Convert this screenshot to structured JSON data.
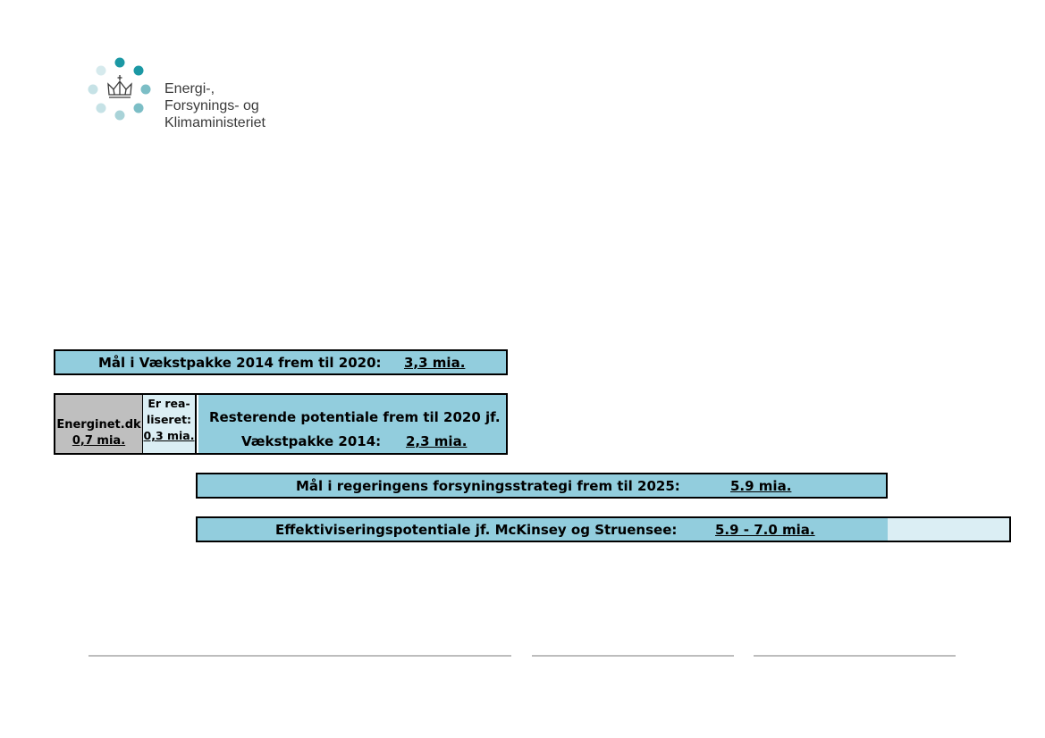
{
  "logo": {
    "name": "crown-dots-logo",
    "lines": [
      "Energi-,",
      "Forsynings- og",
      "Klimaministeriet"
    ],
    "colors": {
      "dark": "#1b98a4",
      "mid": "#7cbec6",
      "light": "#c6e2e6",
      "crown": "#3a3a3a"
    }
  },
  "box1": {
    "label": "Mål i Vækstpakke 2014 frem til 2020:",
    "value": "3,3 mia."
  },
  "box2": {
    "energinet": {
      "name": "Energinet.dk",
      "value": "0,7 mia."
    },
    "realiseret": {
      "line1": "Er rea-",
      "line2": "liseret:",
      "value": "0,3 mia."
    },
    "rest": {
      "line1": "Resterende potentiale frem til 2020 jf.",
      "line2": "Vækstpakke 2014:",
      "value": "2,3 mia."
    }
  },
  "box3": {
    "label": "Mål i regeringens forsyningsstrategi frem til 2025:",
    "value": "5.9 mia."
  },
  "box4": {
    "label": "Effektiviseringspotentiale jf. McKinsey og Struensee:",
    "value": "5.9 - 7.0 mia."
  },
  "colors": {
    "box_blue": "#92cddd",
    "box_light": "#dbeef4",
    "box_grey": "#bfbfbf",
    "footer_line": "#bdbdbd"
  }
}
